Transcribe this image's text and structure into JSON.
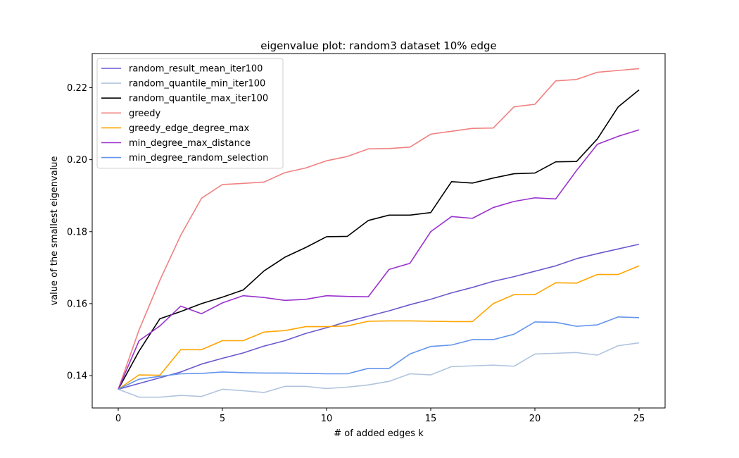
{
  "chart_data": {
    "type": "line",
    "title": "eigenvalue plot: random3 dataset 10% edge",
    "xlabel": "# of added edges k",
    "ylabel": "value of the smallest eigenvalue",
    "xlim": [
      -1.25,
      26.25
    ],
    "ylim": [
      0.131,
      0.2295
    ],
    "xticks": [
      0,
      5,
      10,
      15,
      20,
      25
    ],
    "xtick_labels": [
      "0",
      "5",
      "10",
      "15",
      "20",
      "25"
    ],
    "yticks": [
      0.14,
      0.16,
      0.18,
      0.2,
      0.22
    ],
    "ytick_labels": [
      "0.14",
      "0.16",
      "0.18",
      "0.20",
      "0.22"
    ],
    "grid": false,
    "legend_position": "top-left",
    "x": [
      0,
      1,
      2,
      3,
      4,
      5,
      6,
      7,
      8,
      9,
      10,
      11,
      12,
      13,
      14,
      15,
      16,
      17,
      18,
      19,
      20,
      21,
      22,
      23,
      24,
      25
    ],
    "series": [
      {
        "name": "random_result_mean_iter100",
        "color": "#6a5acd",
        "values": [
          0.1362,
          0.1378,
          0.1394,
          0.141,
          0.1432,
          0.1448,
          0.1463,
          0.1482,
          0.1497,
          0.1517,
          0.1533,
          0.155,
          0.1565,
          0.158,
          0.1597,
          0.1612,
          0.163,
          0.1645,
          0.1662,
          0.1675,
          0.169,
          0.1705,
          0.1725,
          0.1739,
          0.1752,
          0.1765
        ]
      },
      {
        "name": "random_quantile_min_iter100",
        "color": "#b0c4de",
        "values": [
          0.1362,
          0.134,
          0.134,
          0.1345,
          0.1342,
          0.1362,
          0.1358,
          0.1353,
          0.137,
          0.137,
          0.1364,
          0.1368,
          0.1374,
          0.1384,
          0.1405,
          0.1402,
          0.1425,
          0.1427,
          0.1429,
          0.1426,
          0.146,
          0.1462,
          0.1464,
          0.1457,
          0.1483,
          0.1491
        ]
      },
      {
        "name": "random_quantile_max_iter100",
        "color": "#000000",
        "values": [
          0.1362,
          0.1468,
          0.1558,
          0.1578,
          0.16,
          0.1618,
          0.1638,
          0.1691,
          0.1729,
          0.1756,
          0.1786,
          0.1787,
          0.1831,
          0.1846,
          0.1846,
          0.1853,
          0.1939,
          0.1935,
          0.1949,
          0.1961,
          0.1963,
          0.1994,
          0.1995,
          0.2058,
          0.2147,
          0.2194
        ]
      },
      {
        "name": "greedy",
        "color": "#f08080",
        "values": [
          0.1362,
          0.1527,
          0.1665,
          0.179,
          0.1893,
          0.1931,
          0.1934,
          0.1938,
          0.1964,
          0.1977,
          0.1997,
          0.2009,
          0.203,
          0.2031,
          0.2035,
          0.2071,
          0.2079,
          0.2087,
          0.2088,
          0.2147,
          0.2154,
          0.2219,
          0.2223,
          0.2243,
          0.2248,
          0.2253
        ]
      },
      {
        "name": "greedy_edge_degree_max",
        "color": "#ffa500",
        "values": [
          0.1362,
          0.1402,
          0.1401,
          0.1472,
          0.1472,
          0.1497,
          0.1497,
          0.1521,
          0.1525,
          0.1536,
          0.1536,
          0.1538,
          0.1551,
          0.1552,
          0.1552,
          0.1551,
          0.155,
          0.155,
          0.16,
          0.1625,
          0.1625,
          0.1658,
          0.1657,
          0.1681,
          0.1681,
          0.1705
        ]
      },
      {
        "name": "min_degree_max_distance",
        "color": "#9932cc",
        "values": [
          0.1362,
          0.1497,
          0.1538,
          0.1593,
          0.1572,
          0.1602,
          0.1622,
          0.1617,
          0.1609,
          0.1612,
          0.1622,
          0.162,
          0.1619,
          0.1695,
          0.1712,
          0.18,
          0.1842,
          0.1837,
          0.1867,
          0.1884,
          0.1894,
          0.1891,
          0.197,
          0.2043,
          0.2065,
          0.2083
        ]
      },
      {
        "name": "min_degree_random_selection",
        "color": "#6495ed",
        "values": [
          0.1362,
          0.139,
          0.1398,
          0.1405,
          0.1406,
          0.141,
          0.1408,
          0.1407,
          0.1407,
          0.1406,
          0.1405,
          0.1405,
          0.142,
          0.142,
          0.146,
          0.1481,
          0.1485,
          0.15,
          0.15,
          0.1515,
          0.1549,
          0.1548,
          0.1537,
          0.1541,
          0.1563,
          0.1561
        ]
      }
    ]
  }
}
